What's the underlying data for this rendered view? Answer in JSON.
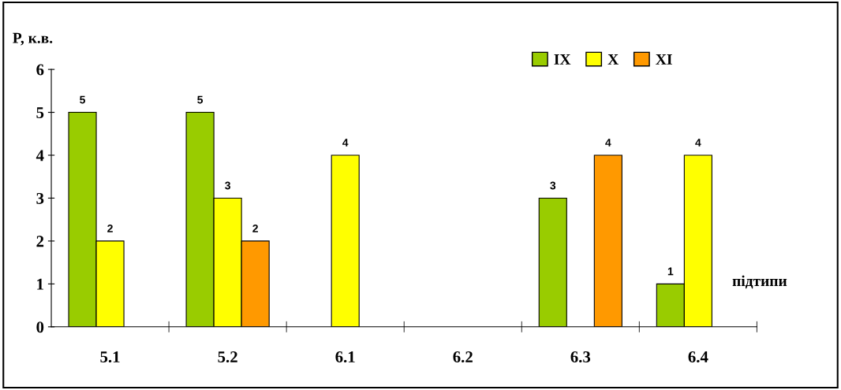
{
  "chart_data": {
    "type": "bar",
    "ylabel": "P, к.в.",
    "xlabel": "підтипи",
    "categories": [
      "5.1",
      "5.2",
      "6.1",
      "6.2",
      "6.3",
      "6.4"
    ],
    "series": [
      {
        "name": "IX",
        "color": "#99cc00",
        "values": [
          5,
          5,
          null,
          null,
          3,
          1
        ]
      },
      {
        "name": "X",
        "color": "#ffff00",
        "values": [
          2,
          3,
          4,
          null,
          null,
          4
        ]
      },
      {
        "name": "XI",
        "color": "#ff9900",
        "values": [
          null,
          2,
          null,
          null,
          4,
          null
        ]
      }
    ],
    "ylim": [
      0,
      6
    ],
    "yticks": [
      0,
      1,
      2,
      3,
      4,
      5,
      6
    ],
    "data_labels": true,
    "legend": "top right",
    "grid": false
  }
}
